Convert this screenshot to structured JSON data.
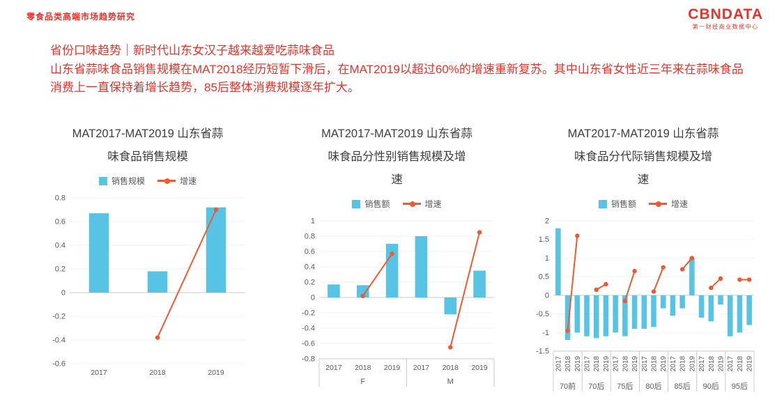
{
  "page": {
    "report_label": "零食品类高端市场趋势研究",
    "logo": {
      "text": "CBNDATA",
      "subtitle": "第一财经商业数据中心"
    },
    "headline": "省份口味趋势｜新时代山东女汉子越来越爱吃蒜味食品",
    "body": "山东省蒜味食品销售规模在MAT2018经历短暂下滑后，在MAT2019以超过60%的增速重新复苏。其中山东省女性近三年来在蒜味食品消费上一直保持着增长趋势，85后整体消费规模逐年扩大。"
  },
  "colors": {
    "accent_red": "#e8332a",
    "bar_blue": "#57c4e5",
    "line_orange": "#f0592e"
  },
  "chart_data": [
    {
      "type": "bar",
      "subtype": "bar-line-combo",
      "title_lines": [
        "MAT2017-MAT2019 山东省蒜",
        "味食品销售规模"
      ],
      "title": "MAT2017-MAT2019 山东省蒜味食品销售规模",
      "legend": [
        {
          "label": "销售规模",
          "marker": "bar"
        },
        {
          "label": "增速",
          "marker": "line"
        }
      ],
      "ylim": [
        -0.6,
        0.8
      ],
      "ytick": 0.2,
      "grid": "off",
      "legend_position": "top",
      "groups": [
        {
          "label": "",
          "categories": [
            "2017",
            "2018",
            "2019"
          ],
          "bars": [
            0.67,
            0.18,
            0.72
          ],
          "line": [
            null,
            -0.38,
            0.7
          ]
        }
      ]
    },
    {
      "type": "bar",
      "subtype": "bar-line-combo",
      "title_lines": [
        "MAT2017-MAT2019 山东省蒜",
        "味食品分性别销售规模及增",
        "速"
      ],
      "title": "MAT2017-MAT2019 山东省蒜味食品分性别销售规模及增速",
      "legend": [
        {
          "label": "销售额",
          "marker": "bar"
        },
        {
          "label": "增速",
          "marker": "line"
        }
      ],
      "ylim": [
        -0.8,
        1.0
      ],
      "ytick": 0.2,
      "grid": "off",
      "legend_position": "top",
      "groups": [
        {
          "label": "F",
          "categories": [
            "2017",
            "2018",
            "2019"
          ],
          "bars": [
            0.17,
            0.16,
            0.7
          ],
          "line": [
            null,
            0.02,
            0.57
          ]
        },
        {
          "label": "M",
          "categories": [
            "2017",
            "2018",
            "2019"
          ],
          "bars": [
            0.8,
            -0.22,
            0.35
          ],
          "line": [
            null,
            -0.65,
            0.85
          ]
        }
      ]
    },
    {
      "type": "bar",
      "subtype": "bar-line-combo",
      "title_lines": [
        "MAT2017-MAT2019 山东省蒜",
        "味食品分代际销售规模及增",
        "速"
      ],
      "title": "MAT2017-MAT2019 山东省蒜味食品分代际销售规模及增速",
      "legend": [
        {
          "label": "销售额",
          "marker": "bar"
        },
        {
          "label": "增速",
          "marker": "line"
        }
      ],
      "ylim": [
        -1.5,
        2.0
      ],
      "ytick": 0.5,
      "grid": "off",
      "legend_position": "top",
      "groups": [
        {
          "label": "70前",
          "categories": [
            "2017",
            "2018",
            "2019"
          ],
          "bars": [
            1.8,
            -1.2,
            -1.0
          ],
          "line": [
            null,
            -0.95,
            1.6
          ]
        },
        {
          "label": "70后",
          "categories": [
            "2017",
            "2018",
            "2019"
          ],
          "bars": [
            -1.1,
            -1.15,
            -1.1
          ],
          "line": [
            null,
            0.15,
            0.3
          ]
        },
        {
          "label": "75后",
          "categories": [
            "2017",
            "2018",
            "2019"
          ],
          "bars": [
            -1.0,
            -1.1,
            -0.9
          ],
          "line": [
            null,
            -0.15,
            0.65
          ]
        },
        {
          "label": "80后",
          "categories": [
            "2017",
            "2018",
            "2019"
          ],
          "bars": [
            -0.9,
            -0.85,
            -0.35
          ],
          "line": [
            null,
            0.1,
            0.75
          ]
        },
        {
          "label": "85后",
          "categories": [
            "2017",
            "2018",
            "2019"
          ],
          "bars": [
            -0.55,
            -0.35,
            1.0
          ],
          "line": [
            null,
            0.7,
            1.0
          ]
        },
        {
          "label": "90后",
          "categories": [
            "2017",
            "2018",
            "2019"
          ],
          "bars": [
            -0.6,
            -0.7,
            -0.25
          ],
          "line": [
            null,
            0.2,
            0.45
          ]
        },
        {
          "label": "95后",
          "categories": [
            "2017",
            "2018",
            "2019"
          ],
          "bars": [
            -1.1,
            -1.0,
            -0.8
          ],
          "line": [
            null,
            0.42,
            0.42
          ]
        }
      ]
    }
  ]
}
